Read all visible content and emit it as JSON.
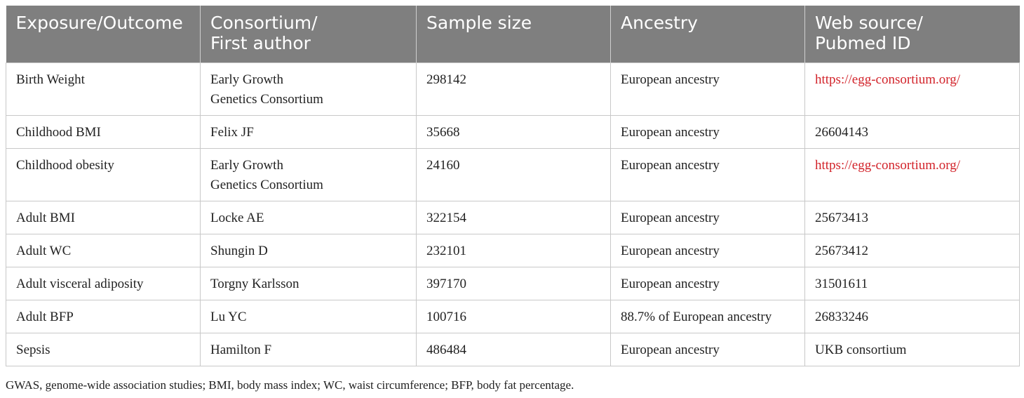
{
  "table": {
    "headers": [
      "Exposure/Outcome",
      "Consortium/\nFirst author",
      "Sample size",
      "Ancestry",
      "Web source/\nPubmed ID"
    ],
    "rows": [
      [
        "Birth Weight",
        "Early Growth\nGenetics Consortium",
        "298142",
        "European ancestry",
        "https://egg-consortium.org/"
      ],
      [
        "Childhood BMI",
        "Felix JF",
        "35668",
        "European ancestry",
        "26604143"
      ],
      [
        "Childhood obesity",
        "Early Growth\nGenetics Consortium",
        "24160",
        "European ancestry",
        "https://egg-consortium.org/"
      ],
      [
        "Adult BMI",
        "Locke AE",
        "322154",
        "European ancestry",
        "25673413"
      ],
      [
        "Adult WC",
        "Shungin D",
        "232101",
        "European ancestry",
        "25673412"
      ],
      [
        "Adult visceral adiposity",
        "Torgny Karlsson",
        "397170",
        "European ancestry",
        "31501611"
      ],
      [
        "Adult BFP",
        "Lu YC",
        "100716",
        "88.7% of European ancestry",
        "26833246"
      ],
      [
        "Sepsis",
        "Hamilton F",
        "486484",
        "European ancestry",
        "UKB consortium"
      ]
    ]
  },
  "footnote": "GWAS, genome-wide association studies; BMI, body mass index; WC, waist circumference; BFP, body fat percentage.",
  "colors": {
    "header_bg": "#7f7f7f",
    "link": "#d2232a",
    "border": "#c8c8c8"
  }
}
